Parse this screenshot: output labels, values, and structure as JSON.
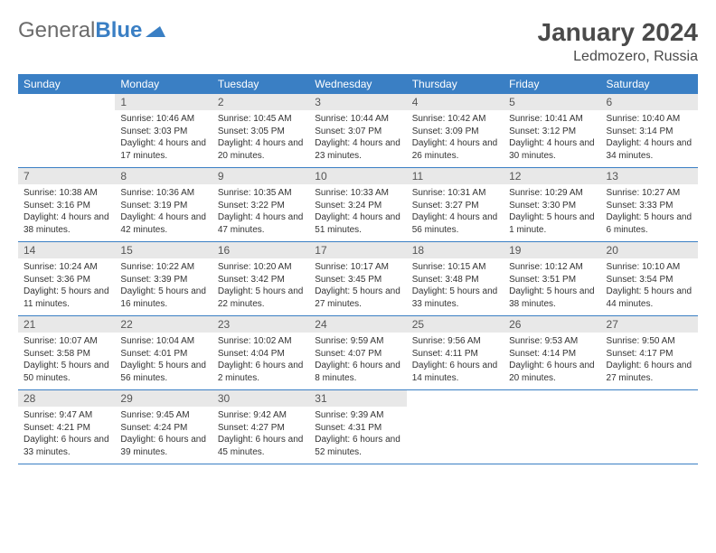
{
  "brand": {
    "part1": "General",
    "part2": "Blue"
  },
  "title": "January 2024",
  "location": "Ledmozero, Russia",
  "colors": {
    "header_bg": "#3a7fc4",
    "header_text": "#ffffff",
    "daynum_bg": "#e8e8e8",
    "border": "#3a7fc4"
  },
  "weekdays": [
    "Sunday",
    "Monday",
    "Tuesday",
    "Wednesday",
    "Thursday",
    "Friday",
    "Saturday"
  ],
  "weeks": [
    [
      null,
      {
        "n": "1",
        "sunrise": "10:46 AM",
        "sunset": "3:03 PM",
        "daylight": "4 hours and 17 minutes."
      },
      {
        "n": "2",
        "sunrise": "10:45 AM",
        "sunset": "3:05 PM",
        "daylight": "4 hours and 20 minutes."
      },
      {
        "n": "3",
        "sunrise": "10:44 AM",
        "sunset": "3:07 PM",
        "daylight": "4 hours and 23 minutes."
      },
      {
        "n": "4",
        "sunrise": "10:42 AM",
        "sunset": "3:09 PM",
        "daylight": "4 hours and 26 minutes."
      },
      {
        "n": "5",
        "sunrise": "10:41 AM",
        "sunset": "3:12 PM",
        "daylight": "4 hours and 30 minutes."
      },
      {
        "n": "6",
        "sunrise": "10:40 AM",
        "sunset": "3:14 PM",
        "daylight": "4 hours and 34 minutes."
      }
    ],
    [
      {
        "n": "7",
        "sunrise": "10:38 AM",
        "sunset": "3:16 PM",
        "daylight": "4 hours and 38 minutes."
      },
      {
        "n": "8",
        "sunrise": "10:36 AM",
        "sunset": "3:19 PM",
        "daylight": "4 hours and 42 minutes."
      },
      {
        "n": "9",
        "sunrise": "10:35 AM",
        "sunset": "3:22 PM",
        "daylight": "4 hours and 47 minutes."
      },
      {
        "n": "10",
        "sunrise": "10:33 AM",
        "sunset": "3:24 PM",
        "daylight": "4 hours and 51 minutes."
      },
      {
        "n": "11",
        "sunrise": "10:31 AM",
        "sunset": "3:27 PM",
        "daylight": "4 hours and 56 minutes."
      },
      {
        "n": "12",
        "sunrise": "10:29 AM",
        "sunset": "3:30 PM",
        "daylight": "5 hours and 1 minute."
      },
      {
        "n": "13",
        "sunrise": "10:27 AM",
        "sunset": "3:33 PM",
        "daylight": "5 hours and 6 minutes."
      }
    ],
    [
      {
        "n": "14",
        "sunrise": "10:24 AM",
        "sunset": "3:36 PM",
        "daylight": "5 hours and 11 minutes."
      },
      {
        "n": "15",
        "sunrise": "10:22 AM",
        "sunset": "3:39 PM",
        "daylight": "5 hours and 16 minutes."
      },
      {
        "n": "16",
        "sunrise": "10:20 AM",
        "sunset": "3:42 PM",
        "daylight": "5 hours and 22 minutes."
      },
      {
        "n": "17",
        "sunrise": "10:17 AM",
        "sunset": "3:45 PM",
        "daylight": "5 hours and 27 minutes."
      },
      {
        "n": "18",
        "sunrise": "10:15 AM",
        "sunset": "3:48 PM",
        "daylight": "5 hours and 33 minutes."
      },
      {
        "n": "19",
        "sunrise": "10:12 AM",
        "sunset": "3:51 PM",
        "daylight": "5 hours and 38 minutes."
      },
      {
        "n": "20",
        "sunrise": "10:10 AM",
        "sunset": "3:54 PM",
        "daylight": "5 hours and 44 minutes."
      }
    ],
    [
      {
        "n": "21",
        "sunrise": "10:07 AM",
        "sunset": "3:58 PM",
        "daylight": "5 hours and 50 minutes."
      },
      {
        "n": "22",
        "sunrise": "10:04 AM",
        "sunset": "4:01 PM",
        "daylight": "5 hours and 56 minutes."
      },
      {
        "n": "23",
        "sunrise": "10:02 AM",
        "sunset": "4:04 PM",
        "daylight": "6 hours and 2 minutes."
      },
      {
        "n": "24",
        "sunrise": "9:59 AM",
        "sunset": "4:07 PM",
        "daylight": "6 hours and 8 minutes."
      },
      {
        "n": "25",
        "sunrise": "9:56 AM",
        "sunset": "4:11 PM",
        "daylight": "6 hours and 14 minutes."
      },
      {
        "n": "26",
        "sunrise": "9:53 AM",
        "sunset": "4:14 PM",
        "daylight": "6 hours and 20 minutes."
      },
      {
        "n": "27",
        "sunrise": "9:50 AM",
        "sunset": "4:17 PM",
        "daylight": "6 hours and 27 minutes."
      }
    ],
    [
      {
        "n": "28",
        "sunrise": "9:47 AM",
        "sunset": "4:21 PM",
        "daylight": "6 hours and 33 minutes."
      },
      {
        "n": "29",
        "sunrise": "9:45 AM",
        "sunset": "4:24 PM",
        "daylight": "6 hours and 39 minutes."
      },
      {
        "n": "30",
        "sunrise": "9:42 AM",
        "sunset": "4:27 PM",
        "daylight": "6 hours and 45 minutes."
      },
      {
        "n": "31",
        "sunrise": "9:39 AM",
        "sunset": "4:31 PM",
        "daylight": "6 hours and 52 minutes."
      },
      null,
      null,
      null
    ]
  ]
}
